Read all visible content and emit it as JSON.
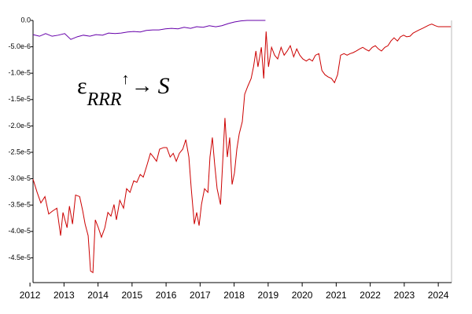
{
  "chart_data": {
    "type": "line",
    "annotation": {
      "symbol": "ε",
      "subscript": "RRR",
      "arrow": "↑",
      "rest": "→",
      "target": "S"
    },
    "xlim": [
      2012.09,
      2024.39
    ],
    "xticks": [
      2012,
      2013,
      2014,
      2015,
      2016,
      2017,
      2018,
      2019,
      2020,
      2021,
      2022,
      2023,
      2024
    ],
    "ylim": [
      -4.97e-05,
      0
    ],
    "yticks": [
      {
        "value": 0,
        "label": "0.0"
      },
      {
        "value": -5e-06,
        "label": "-5.0e-6"
      },
      {
        "value": -1e-05,
        "label": "-1.0e-5"
      },
      {
        "value": -1.5e-05,
        "label": "-1.5e-5"
      },
      {
        "value": -2e-05,
        "label": "-2.0e-5"
      },
      {
        "value": -2.5e-05,
        "label": "-2.5e-5"
      },
      {
        "value": -3e-05,
        "label": "-3.0e-5"
      },
      {
        "value": -3.5e-05,
        "label": "-3.5e-5"
      },
      {
        "value": -4e-05,
        "label": "-4.0e-5"
      },
      {
        "value": -4.5e-05,
        "label": "-4.5e-5"
      }
    ],
    "series": [
      {
        "color": "#cc0000",
        "x": [
          2012.09,
          2012.21,
          2012.32,
          2012.44,
          2012.55,
          2012.67,
          2012.79,
          2012.9,
          2012.97,
          2013.09,
          2013.16,
          2013.25,
          2013.34,
          2013.46,
          2013.55,
          2013.62,
          2013.71,
          2013.78,
          2013.85,
          2013.92,
          2014.01,
          2014.1,
          2014.2,
          2014.29,
          2014.38,
          2014.47,
          2014.54,
          2014.64,
          2014.75,
          2014.84,
          2014.94,
          2015.05,
          2015.14,
          2015.24,
          2015.33,
          2015.44,
          2015.54,
          2015.63,
          2015.72,
          2015.81,
          2015.93,
          2016.02,
          2016.12,
          2016.21,
          2016.3,
          2016.39,
          2016.49,
          2016.58,
          2016.67,
          2016.74,
          2016.83,
          2016.9,
          2016.97,
          2017.04,
          2017.13,
          2017.23,
          2017.29,
          2017.36,
          2017.43,
          2017.5,
          2017.6,
          2017.66,
          2017.73,
          2017.8,
          2017.87,
          2017.94,
          2018.01,
          2018.08,
          2018.15,
          2018.24,
          2018.31,
          2018.4,
          2018.5,
          2018.57,
          2018.64,
          2018.7,
          2018.8,
          2018.87,
          2018.94,
          2019.01,
          2019.1,
          2019.19,
          2019.28,
          2019.38,
          2019.47,
          2019.56,
          2019.65,
          2019.75,
          2019.84,
          2019.93,
          2020.02,
          2020.12,
          2020.21,
          2020.3,
          2020.39,
          2020.49,
          2020.58,
          2020.67,
          2020.76,
          2020.86,
          2020.95,
          2021.04,
          2021.13,
          2021.23,
          2021.32,
          2021.41,
          2021.5,
          2021.59,
          2021.69,
          2021.78,
          2021.87,
          2021.96,
          2022.06,
          2022.15,
          2022.24,
          2022.33,
          2022.43,
          2022.52,
          2022.61,
          2022.7,
          2022.8,
          2022.89,
          2022.98,
          2023.07,
          2023.17,
          2023.26,
          2023.35,
          2023.44,
          2023.54,
          2023.63,
          2023.72,
          2023.81,
          2023.91,
          2024.0,
          2024.14,
          2024.28,
          2024.37
        ],
        "values": [
          -3.01e-05,
          -3.26e-05,
          -3.46e-05,
          -3.34e-05,
          -3.67e-05,
          -3.61e-05,
          -3.56e-05,
          -4.08e-05,
          -3.64e-05,
          -3.93e-05,
          -3.52e-05,
          -3.86e-05,
          -3.31e-05,
          -3.34e-05,
          -3.61e-05,
          -3.86e-05,
          -4.08e-05,
          -4.75e-05,
          -4.78e-05,
          -3.78e-05,
          -3.93e-05,
          -4.11e-05,
          -3.93e-05,
          -3.64e-05,
          -3.71e-05,
          -3.49e-05,
          -3.78e-05,
          -3.41e-05,
          -3.56e-05,
          -3.19e-05,
          -3.26e-05,
          -3.04e-05,
          -3.07e-05,
          -2.92e-05,
          -2.97e-05,
          -2.74e-05,
          -2.52e-05,
          -2.59e-05,
          -2.67e-05,
          -2.44e-05,
          -2.41e-05,
          -2.41e-05,
          -2.59e-05,
          -2.52e-05,
          -2.67e-05,
          -2.52e-05,
          -2.44e-05,
          -2.26e-05,
          -2.59e-05,
          -3.19e-05,
          -3.86e-05,
          -3.64e-05,
          -3.89e-05,
          -3.49e-05,
          -3.19e-05,
          -3.26e-05,
          -2.59e-05,
          -2.22e-05,
          -2.74e-05,
          -3.19e-05,
          -3.49e-05,
          -2.74e-05,
          -1.85e-05,
          -2.59e-05,
          -2.22e-05,
          -3.11e-05,
          -2.89e-05,
          -2.44e-05,
          -2.15e-05,
          -1.92e-05,
          -1.4e-05,
          -1.25e-05,
          -1.1e-05,
          -8.8e-06,
          -5.8e-06,
          -8.8e-06,
          -5.1e-06,
          -1.1e-05,
          -2.1e-06,
          -8.8e-06,
          -5.1e-06,
          -6.6e-06,
          -7.3e-06,
          -5.1e-06,
          -6.6e-06,
          -5.8e-06,
          -4.8e-06,
          -6.9e-06,
          -5.4e-06,
          -6.6e-06,
          -7.3e-06,
          -7.7e-06,
          -7.3e-06,
          -7.7e-06,
          -6.6e-06,
          -6.3e-06,
          -9.5e-06,
          -1.03e-05,
          -1.07e-05,
          -1.1e-05,
          -1.18e-05,
          -1.03e-05,
          -6.6e-06,
          -6.3e-06,
          -6.6e-06,
          -6.3e-06,
          -6.1e-06,
          -5.8e-06,
          -5.4e-06,
          -5.1e-06,
          -5.5e-06,
          -5.8e-06,
          -5.1e-06,
          -4.8e-06,
          -5.4e-06,
          -5.8e-06,
          -5.1e-06,
          -4.8e-06,
          -3.9e-06,
          -3.3e-06,
          -3.9e-06,
          -3.1e-06,
          -2.8e-06,
          -3.1e-06,
          -3e-06,
          -2.4e-06,
          -2.1e-06,
          -1.8e-06,
          -1.5e-06,
          -1.2e-06,
          -9e-07,
          -7e-07,
          -1e-06,
          -1.2e-06,
          -1.2e-06,
          -1.2e-06,
          -1.2e-06
        ]
      },
      {
        "color": "#6600aa",
        "x": [
          2012.09,
          2012.28,
          2012.46,
          2012.65,
          2012.83,
          2013.02,
          2013.2,
          2013.39,
          2013.57,
          2013.76,
          2013.94,
          2014.13,
          2014.31,
          2014.5,
          2014.68,
          2014.87,
          2015.05,
          2015.24,
          2015.42,
          2015.61,
          2015.79,
          2015.98,
          2016.16,
          2016.35,
          2016.53,
          2016.72,
          2016.9,
          2017.09,
          2017.27,
          2017.46,
          2017.64,
          2017.83,
          2018.01,
          2018.2,
          2018.38,
          2018.57,
          2018.75,
          2018.92
        ],
        "values": [
          -2.7e-06,
          -3e-06,
          -2.5e-06,
          -3e-06,
          -2.8e-06,
          -2.5e-06,
          -3.6e-06,
          -3.1e-06,
          -2.8e-06,
          -3e-06,
          -2.7e-06,
          -2.8e-06,
          -2.4e-06,
          -2.5e-06,
          -2.4e-06,
          -2.2e-06,
          -2.1e-06,
          -2.2e-06,
          -1.9e-06,
          -1.8e-06,
          -1.8e-06,
          -1.6e-06,
          -1.5e-06,
          -1.6e-06,
          -1.3e-06,
          -1.5e-06,
          -1.2e-06,
          -1.3e-06,
          -1e-06,
          -1.2e-06,
          -1e-06,
          -6e-07,
          -3e-07,
          -1e-07,
          0,
          0,
          0,
          0
        ]
      }
    ]
  }
}
